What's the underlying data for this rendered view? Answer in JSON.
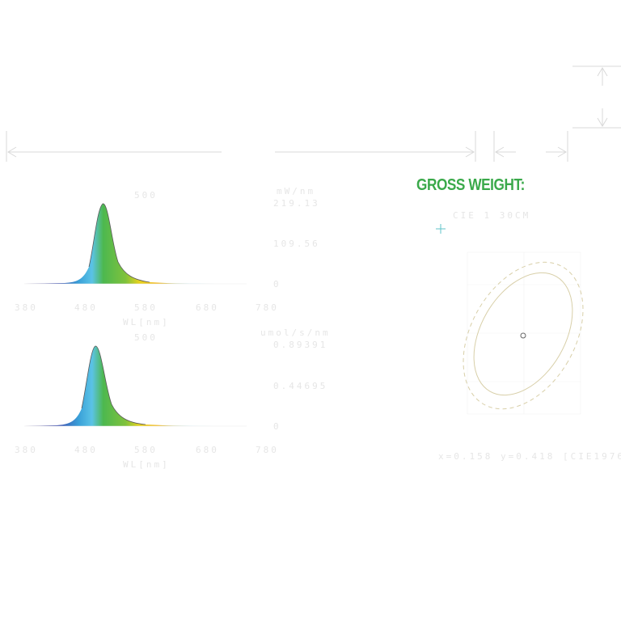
{
  "heading": "GROSS WEIGHT:",
  "colors": {
    "heading": "#3aa94a",
    "dimension_line": "#d9d9d9",
    "faint_text": "#e6e6e6",
    "ellipse": "#d8cfa8",
    "crosshair": "#5fc3c9"
  },
  "spectrum_top": {
    "y_unit_label": "mW/nm",
    "y_max_label": "219.13",
    "y_mid_label": "109.56",
    "y_zero_label": "0",
    "x_ticks": [
      "380",
      "480",
      "580",
      "680",
      "780"
    ],
    "x_label": "WL[nm]",
    "peak_label": "500"
  },
  "spectrum_bottom": {
    "y_unit_label": "umol/s/nm",
    "y_max_label": "0.89391",
    "y_mid_label": "0.44695",
    "y_zero_label": "0",
    "x_ticks": [
      "380",
      "480",
      "580",
      "680",
      "780"
    ],
    "x_label": "WL[nm]",
    "peak_label": "500"
  },
  "cie": {
    "label": "CIE 1 30CM",
    "coords_label": "x=0.158 y=0.418 [CIE1976]"
  }
}
